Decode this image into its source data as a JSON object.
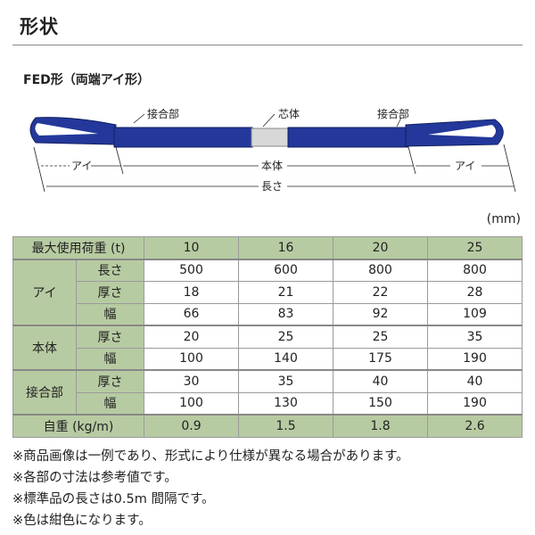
{
  "title": "形状",
  "subtitle": "FED形（両端アイ形）",
  "diagram": {
    "labels": {
      "joint_left": "接合部",
      "core": "芯体",
      "joint_right": "接合部",
      "eye_left": "アイ",
      "body": "本体",
      "eye_right": "アイ",
      "length": "長さ"
    },
    "sling_color": "#23389a"
  },
  "unit": "(mm)",
  "table": {
    "header_label": "最大使用荷重 (t)",
    "capacities": [
      "10",
      "16",
      "20",
      "25"
    ],
    "groups": {
      "eye": "アイ",
      "body": "本体",
      "joint": "接合部"
    },
    "rows": [
      {
        "label": "長さ",
        "values": [
          "500",
          "600",
          "800",
          "800"
        ]
      },
      {
        "label": "厚さ",
        "values": [
          "18",
          "21",
          "22",
          "28"
        ]
      },
      {
        "label": "幅",
        "values": [
          "66",
          "83",
          "92",
          "109"
        ]
      },
      {
        "label": "厚さ",
        "values": [
          "20",
          "25",
          "25",
          "35"
        ]
      },
      {
        "label": "幅",
        "values": [
          "100",
          "140",
          "175",
          "190"
        ]
      },
      {
        "label": "厚さ",
        "values": [
          "30",
          "35",
          "40",
          "40"
        ]
      },
      {
        "label": "幅",
        "values": [
          "100",
          "130",
          "150",
          "190"
        ]
      }
    ],
    "weight_label": "自重 (kg/m)",
    "weights": [
      "0.9",
      "1.5",
      "1.8",
      "2.6"
    ]
  },
  "notes": [
    "※商品画像は一例であり、形式により仕様が異なる場合があります。",
    "※各部の寸法は参考値です。",
    "※標準品の長さは0.5m 間隔です。",
    "※色は紺色になります。"
  ]
}
